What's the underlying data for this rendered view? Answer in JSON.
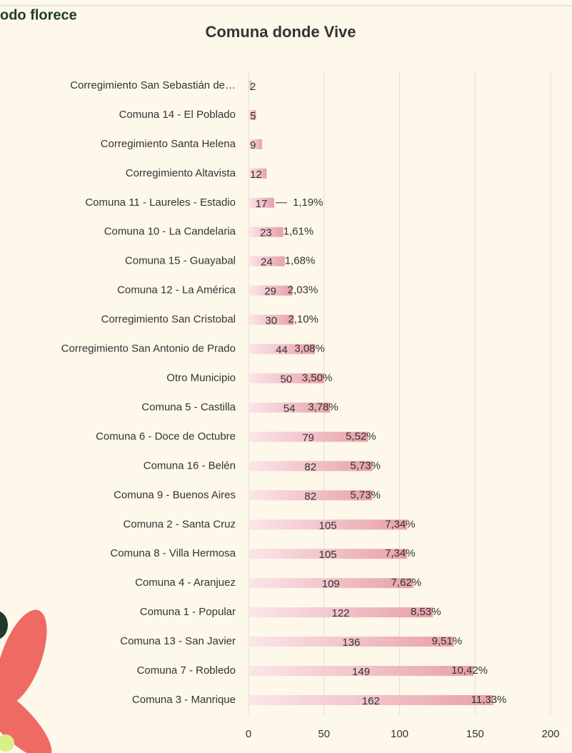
{
  "brand": "odo florece",
  "chart_data": {
    "type": "barh",
    "title": "Comuna donde Vive",
    "categories": [
      "Corregimiento San Sebastián de…",
      "Comuna 14 - El Poblado",
      "Corregimiento Santa Helena",
      "Corregimiento Altavista",
      "Comuna 11 - Laureles - Estadio",
      "Comuna 10 - La Candelaria",
      "Comuna 15 - Guayabal",
      "Comuna 12 - La América",
      "Corregimiento San Cristobal",
      "Corregimiento San Antonio de Prado",
      "Otro Municipio",
      "Comuna 5 - Castilla",
      "Comuna 6 - Doce de Octubre",
      "Comuna 16 - Belén",
      "Comuna 9 - Buenos Aires",
      "Comuna 2 - Santa Cruz",
      "Comuna 8 - Villa Hermosa",
      "Comuna 4 - Aranjuez",
      "Comuna 1 - Popular",
      "Comuna 13 - San Javier",
      "Comuna 7 - Robledo",
      "Comuna 3 - Manrique"
    ],
    "values": [
      2,
      5,
      9,
      12,
      17,
      23,
      24,
      29,
      30,
      44,
      50,
      54,
      79,
      82,
      82,
      105,
      105,
      109,
      122,
      136,
      149,
      162
    ],
    "percent_labels": [
      null,
      null,
      null,
      null,
      "1,19%",
      "1,61%",
      "1,68%",
      "2,03%",
      "2,10%",
      "3,08%",
      "3,50%",
      "3,78%",
      "5,52%",
      "5,73%",
      "5,73%",
      "7,34%",
      "7,34%",
      "7,62%",
      "8,53%",
      "9,51%",
      "10,42%",
      "11,33%"
    ],
    "color": "#e8a0aa",
    "xlim": [
      0,
      200
    ],
    "xticks": [
      0,
      50,
      100,
      150,
      200
    ],
    "grid": true
  }
}
